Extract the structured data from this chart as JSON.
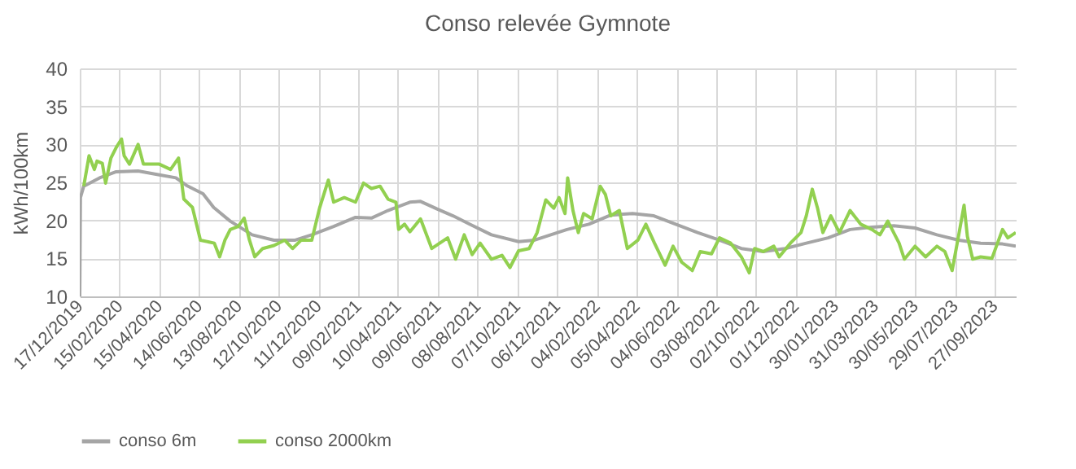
{
  "chart_data": {
    "type": "line",
    "title": "Conso relevée Gymnote",
    "ylabel": "kWh/100km",
    "xlim": [
      "2019-12-17",
      "2023-10-29"
    ],
    "xticks": [
      {
        "value": "2019-12-17",
        "label": "17/12/2019"
      },
      {
        "value": "2020-02-15",
        "label": "15/02/2020"
      },
      {
        "value": "2020-04-15",
        "label": "15/04/2020"
      },
      {
        "value": "2020-06-14",
        "label": "14/06/2020"
      },
      {
        "value": "2020-08-13",
        "label": "13/08/2020"
      },
      {
        "value": "2020-10-12",
        "label": "12/10/2020"
      },
      {
        "value": "2020-12-11",
        "label": "11/12/2020"
      },
      {
        "value": "2021-02-09",
        "label": "09/02/2021"
      },
      {
        "value": "2021-04-10",
        "label": "10/04/2021"
      },
      {
        "value": "2021-06-09",
        "label": "09/06/2021"
      },
      {
        "value": "2021-08-08",
        "label": "08/08/2021"
      },
      {
        "value": "2021-10-07",
        "label": "07/10/2021"
      },
      {
        "value": "2021-12-06",
        "label": "06/12/2021"
      },
      {
        "value": "2022-02-04",
        "label": "04/02/2022"
      },
      {
        "value": "2022-04-05",
        "label": "05/04/2022"
      },
      {
        "value": "2022-06-04",
        "label": "04/06/2022"
      },
      {
        "value": "2022-08-03",
        "label": "03/08/2022"
      },
      {
        "value": "2022-10-02",
        "label": "02/10/2022"
      },
      {
        "value": "2022-12-01",
        "label": "01/12/2022"
      },
      {
        "value": "2023-01-30",
        "label": "30/01/2023"
      },
      {
        "value": "2023-03-31",
        "label": "31/03/2023"
      },
      {
        "value": "2023-05-30",
        "label": "30/05/2023"
      },
      {
        "value": "2023-07-29",
        "label": "29/07/2023"
      },
      {
        "value": "2023-09-27",
        "label": "27/09/2023"
      }
    ],
    "ylim": [
      10,
      40
    ],
    "yticks": [
      10,
      15,
      20,
      25,
      30,
      35,
      40
    ],
    "grid": true,
    "legend": "bottom",
    "line_style": "solid",
    "marker": "none",
    "series": [
      {
        "name": "conso 6m",
        "color": "#a5a5a5",
        "x": [
          "2019-12-17",
          "2019-12-18",
          "2019-12-23",
          "2020-01-16",
          "2020-02-10",
          "2020-03-14",
          "2020-04-15",
          "2020-05-10",
          "2020-05-26",
          "2020-06-20",
          "2020-07-06",
          "2020-07-31",
          "2020-09-02",
          "2020-10-05",
          "2020-11-06",
          "2020-12-01",
          "2021-01-03",
          "2021-02-05",
          "2021-03-01",
          "2021-03-26",
          "2021-04-28",
          "2021-05-14",
          "2021-06-08",
          "2021-07-02",
          "2021-07-27",
          "2021-08-29",
          "2021-10-09",
          "2021-11-02",
          "2021-12-21",
          "2022-01-23",
          "2022-02-25",
          "2022-03-30",
          "2022-05-01",
          "2022-06-03",
          "2022-07-06",
          "2022-08-08",
          "2022-09-10",
          "2022-10-13",
          "2022-11-15",
          "2022-12-17",
          "2023-01-19",
          "2023-02-21",
          "2023-03-26",
          "2023-04-28",
          "2023-05-30",
          "2023-07-02",
          "2023-08-04",
          "2023-09-06",
          "2023-10-09",
          "2023-10-29"
        ],
        "values": [
          10,
          23,
          24.5,
          25.6,
          26.4,
          26.5,
          26,
          25.6,
          24.6,
          23.5,
          21.7,
          19.9,
          18.1,
          17.4,
          17.4,
          18.1,
          19.2,
          20.4,
          20.3,
          21.3,
          22.4,
          22.5,
          21.5,
          20.6,
          19.5,
          18.1,
          17.2,
          17.4,
          18.8,
          19.5,
          20.7,
          20.9,
          20.6,
          19.5,
          18.4,
          17.4,
          16.3,
          15.9,
          16.3,
          17,
          17.7,
          18.8,
          19.1,
          19.3,
          19,
          18.1,
          17.4,
          17,
          16.9,
          16.6
        ]
      },
      {
        "name": "conso 2000km",
        "color": "#92d050",
        "x": [
          "2019-12-23",
          "2019-12-31",
          "2020-01-08",
          "2020-01-12",
          "2020-01-20",
          "2020-01-25",
          "2020-02-02",
          "2020-02-10",
          "2020-02-18",
          "2020-02-22",
          "2020-03-01",
          "2020-03-14",
          "2020-03-22",
          "2020-04-15",
          "2020-05-02",
          "2020-05-14",
          "2020-05-22",
          "2020-06-04",
          "2020-06-16",
          "2020-07-07",
          "2020-07-15",
          "2020-07-23",
          "2020-07-31",
          "2020-08-12",
          "2020-08-21",
          "2020-08-29",
          "2020-09-06",
          "2020-09-18",
          "2020-10-05",
          "2020-10-21",
          "2020-11-02",
          "2020-11-15",
          "2020-12-01",
          "2020-12-13",
          "2020-12-26",
          "2021-01-03",
          "2021-01-19",
          "2021-02-05",
          "2021-02-17",
          "2021-03-01",
          "2021-03-14",
          "2021-03-26",
          "2021-04-07",
          "2021-04-11",
          "2021-04-20",
          "2021-04-28",
          "2021-05-14",
          "2021-05-31",
          "2021-06-24",
          "2021-07-06",
          "2021-07-19",
          "2021-07-31",
          "2021-08-12",
          "2021-08-29",
          "2021-09-14",
          "2021-09-26",
          "2021-10-09",
          "2021-10-25",
          "2021-11-06",
          "2021-11-19",
          "2021-12-01",
          "2021-12-09",
          "2021-12-18",
          "2021-12-22",
          "2021-12-30",
          "2022-01-07",
          "2022-01-15",
          "2022-01-28",
          "2022-02-09",
          "2022-02-17",
          "2022-02-25",
          "2022-03-10",
          "2022-03-22",
          "2022-04-07",
          "2022-04-19",
          "2022-05-02",
          "2022-05-18",
          "2022-05-30",
          "2022-06-12",
          "2022-06-28",
          "2022-07-10",
          "2022-07-27",
          "2022-08-08",
          "2022-08-25",
          "2022-09-10",
          "2022-09-22",
          "2022-09-30",
          "2022-10-13",
          "2022-10-29",
          "2022-11-06",
          "2022-11-23",
          "2022-12-09",
          "2022-12-17",
          "2022-12-26",
          "2023-01-03",
          "2023-01-11",
          "2023-01-23",
          "2023-02-05",
          "2023-02-21",
          "2023-03-09",
          "2023-03-26",
          "2023-04-07",
          "2023-04-19",
          "2023-05-06",
          "2023-05-14",
          "2023-05-30",
          "2023-06-15",
          "2023-07-02",
          "2023-07-14",
          "2023-07-25",
          "2023-08-04",
          "2023-08-12",
          "2023-08-17",
          "2023-08-25",
          "2023-09-06",
          "2023-09-23",
          "2023-10-09",
          "2023-10-17",
          "2023-10-29"
        ],
        "values": [
          24.5,
          28.5,
          26.7,
          27.8,
          27.5,
          24.9,
          28.2,
          29.6,
          30.7,
          28.5,
          27.4,
          30,
          27.4,
          27.4,
          26.7,
          28.2,
          22.8,
          21.7,
          17.4,
          17,
          15.2,
          17.4,
          18.8,
          19.2,
          20.3,
          17.4,
          15.2,
          16.3,
          16.7,
          17.4,
          16.3,
          17.4,
          17.4,
          21.7,
          25.3,
          22.4,
          23,
          22.4,
          24.9,
          24.2,
          24.5,
          22.8,
          22.4,
          18.8,
          19.5,
          18.5,
          20.2,
          16.3,
          17.7,
          14.9,
          18.1,
          15.5,
          17,
          14.9,
          15.4,
          13.8,
          16,
          16.3,
          18.4,
          22.7,
          21.6,
          23,
          20.9,
          25.6,
          21.3,
          18.4,
          20.9,
          20.2,
          24.5,
          23.4,
          20.6,
          21.3,
          16.3,
          17.4,
          19.5,
          17,
          14.1,
          16.6,
          14.5,
          13.4,
          15.9,
          15.6,
          17.7,
          17,
          15.2,
          13.1,
          16.3,
          15.9,
          16.6,
          15.2,
          17,
          18.4,
          20.6,
          24.1,
          21.6,
          18.4,
          20.6,
          18.4,
          21.3,
          19.5,
          18.8,
          18.1,
          19.9,
          17,
          14.9,
          16.6,
          15.2,
          16.6,
          15.9,
          13.4,
          18.1,
          22,
          17.9,
          14.9,
          15.2,
          15,
          18.8,
          17.7,
          18.4
        ]
      }
    ]
  }
}
